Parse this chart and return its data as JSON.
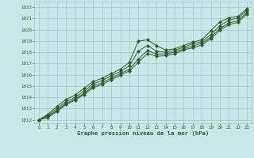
{
  "xlabel": "Graphe pression niveau de la mer (hPa)",
  "bg_color": "#c8e8e8",
  "line_color": "#2d5a2d",
  "grid_color": "#a0c8c8",
  "xlim": [
    -0.5,
    23.5
  ],
  "ylim": [
    1011.7,
    1022.5
  ],
  "yticks": [
    1012,
    1013,
    1014,
    1015,
    1016,
    1017,
    1018,
    1019,
    1020,
    1021,
    1022
  ],
  "xticks": [
    0,
    1,
    2,
    3,
    4,
    5,
    6,
    7,
    8,
    9,
    10,
    11,
    12,
    13,
    14,
    15,
    16,
    17,
    18,
    19,
    20,
    21,
    22,
    23
  ],
  "line1": [
    1012.0,
    1012.5,
    1013.2,
    1013.8,
    1014.2,
    1014.8,
    1015.4,
    1015.7,
    1016.1,
    1016.5,
    1017.1,
    1019.0,
    1019.1,
    1018.6,
    1018.2,
    1018.3,
    1018.6,
    1018.9,
    1019.1,
    1019.9,
    1020.7,
    1021.05,
    1021.2,
    1021.85
  ],
  "line2": [
    1012.0,
    1012.4,
    1013.0,
    1013.6,
    1014.0,
    1014.55,
    1015.2,
    1015.5,
    1015.9,
    1016.3,
    1016.8,
    1018.1,
    1018.6,
    1018.1,
    1018.0,
    1018.15,
    1018.45,
    1018.75,
    1018.95,
    1019.55,
    1020.35,
    1020.85,
    1021.05,
    1021.7
  ],
  "line3": [
    1012.0,
    1012.3,
    1012.85,
    1013.45,
    1013.85,
    1014.35,
    1015.0,
    1015.3,
    1015.7,
    1016.1,
    1016.5,
    1017.4,
    1018.15,
    1017.85,
    1017.85,
    1018.0,
    1018.3,
    1018.55,
    1018.8,
    1019.35,
    1020.1,
    1020.6,
    1020.8,
    1021.55
  ],
  "line4": [
    1012.0,
    1012.2,
    1012.75,
    1013.35,
    1013.75,
    1014.25,
    1014.85,
    1015.15,
    1015.55,
    1015.95,
    1016.35,
    1017.1,
    1017.9,
    1017.65,
    1017.7,
    1017.85,
    1018.2,
    1018.4,
    1018.65,
    1019.2,
    1019.95,
    1020.45,
    1020.65,
    1021.4
  ]
}
